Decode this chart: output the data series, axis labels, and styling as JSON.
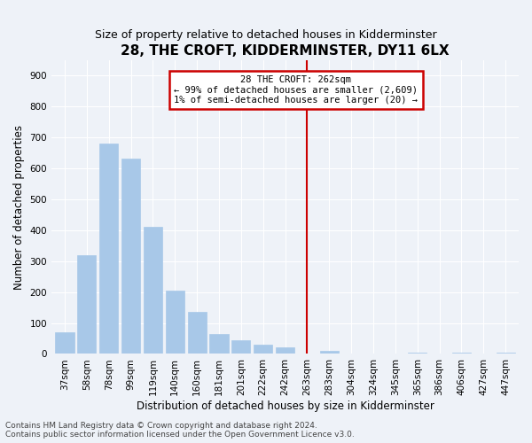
{
  "title": "28, THE CROFT, KIDDERMINSTER, DY11 6LX",
  "subtitle": "Size of property relative to detached houses in Kidderminster",
  "xlabel": "Distribution of detached houses by size in Kidderminster",
  "ylabel": "Number of detached properties",
  "footnote1": "Contains HM Land Registry data © Crown copyright and database right 2024.",
  "footnote2": "Contains public sector information licensed under the Open Government Licence v3.0.",
  "categories": [
    "37sqm",
    "58sqm",
    "78sqm",
    "99sqm",
    "119sqm",
    "140sqm",
    "160sqm",
    "181sqm",
    "201sqm",
    "222sqm",
    "242sqm",
    "263sqm",
    "283sqm",
    "304sqm",
    "324sqm",
    "345sqm",
    "365sqm",
    "386sqm",
    "406sqm",
    "427sqm",
    "447sqm"
  ],
  "values": [
    70,
    320,
    680,
    630,
    410,
    205,
    135,
    65,
    45,
    30,
    20,
    0,
    10,
    0,
    0,
    0,
    5,
    0,
    5,
    0,
    5
  ],
  "bar_color": "#a8c8e8",
  "highlight_index": 11,
  "highlight_color": "#cc0000",
  "annotation_text": "28 THE CROFT: 262sqm\n← 99% of detached houses are smaller (2,609)\n1% of semi-detached houses are larger (20) →",
  "annotation_box_color": "#cc0000",
  "ylim": [
    0,
    950
  ],
  "yticks": [
    0,
    100,
    200,
    300,
    400,
    500,
    600,
    700,
    800,
    900
  ],
  "background_color": "#eef2f8",
  "grid_color": "#ffffff",
  "title_fontsize": 11,
  "subtitle_fontsize": 9,
  "axis_label_fontsize": 8.5,
  "tick_fontsize": 7.5,
  "footnote_fontsize": 6.5
}
